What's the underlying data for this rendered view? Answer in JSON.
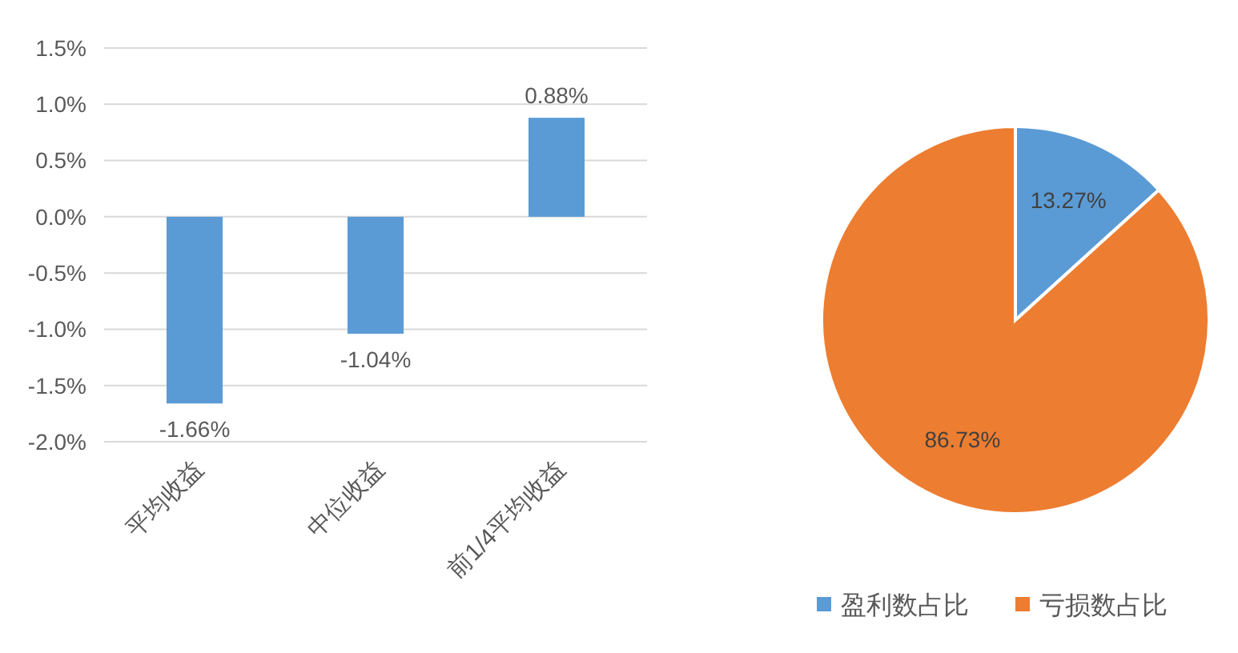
{
  "chart_data": [
    {
      "type": "bar",
      "categories": [
        "平均收益",
        "中位收益",
        "前1/4平均收益"
      ],
      "values": [
        -1.66,
        -1.04,
        0.88
      ],
      "color": "#5b9bd5",
      "value_labels": [
        "-1.66%",
        "-1.04%",
        "0.88%"
      ],
      "ylim": [
        -2.0,
        1.5
      ],
      "yticks": [
        {
          "value": -2.0,
          "label": "-2.0%"
        },
        {
          "value": -1.5,
          "label": "-1.5%"
        },
        {
          "value": -1.0,
          "label": "-1.0%"
        },
        {
          "value": -0.5,
          "label": "-0.5%"
        },
        {
          "value": 0.0,
          "label": "0.0%"
        },
        {
          "value": 0.5,
          "label": "0.5%"
        },
        {
          "value": 1.0,
          "label": "1.0%"
        },
        {
          "value": 1.5,
          "label": "1.5%"
        }
      ],
      "grid": "y"
    },
    {
      "type": "pie",
      "categories": [
        "盈利数占比",
        "亏损数占比"
      ],
      "values": [
        13.27,
        86.73
      ],
      "colors": [
        "#5b9bd5",
        "#ed7d31"
      ],
      "value_labels": [
        "13.27%",
        "86.73%"
      ],
      "legend": "bottom"
    }
  ]
}
